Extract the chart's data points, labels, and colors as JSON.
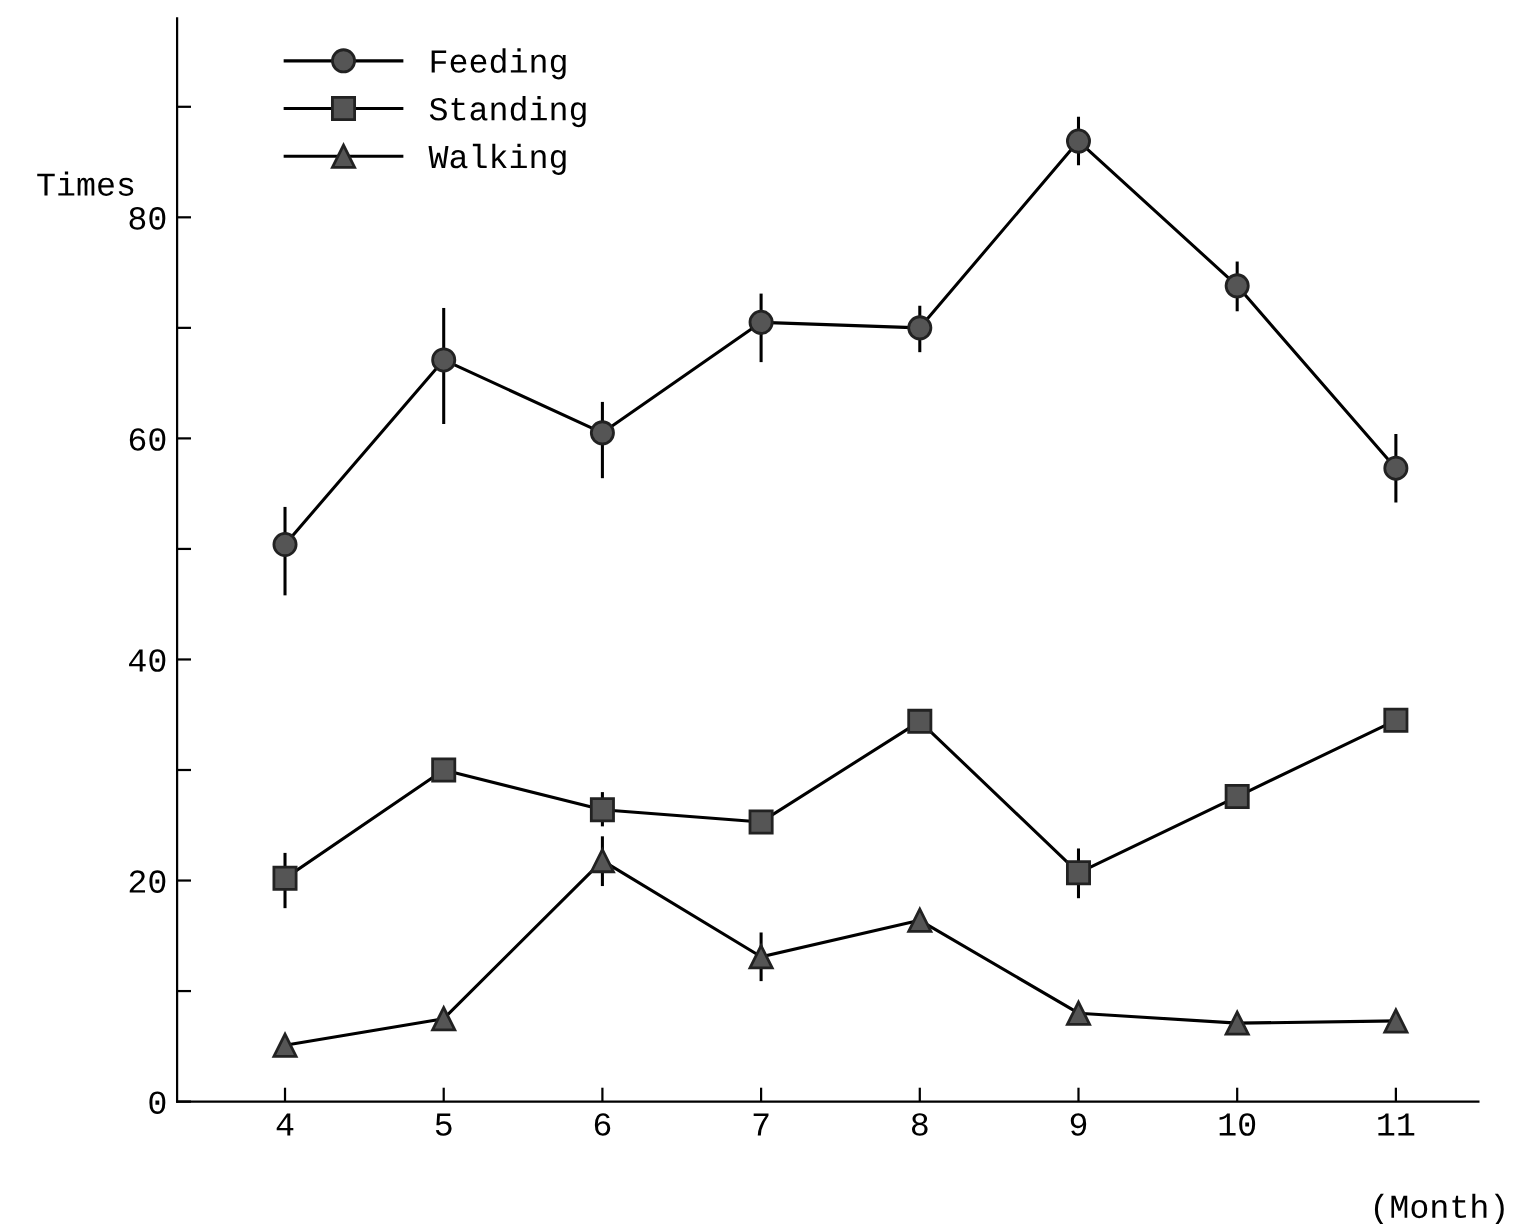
{
  "chart_data": {
    "type": "line",
    "ylabel": "Times",
    "xlabel": "(Month)",
    "x": [
      4,
      5,
      6,
      7,
      8,
      9,
      10,
      11
    ],
    "xlim": [
      3.32,
      11.52
    ],
    "xticks": [
      4,
      5,
      6,
      7,
      8,
      9,
      10,
      11
    ],
    "ylim": [
      0,
      98
    ],
    "yticks": [
      0,
      {
        "value": 10,
        "label": null
      },
      20,
      {
        "value": 30,
        "label": null
      },
      40,
      {
        "value": 50,
        "label": null
      },
      60,
      {
        "value": 70,
        "label": null
      },
      80,
      {
        "value": 90,
        "label": null
      }
    ],
    "grid": false,
    "legend": "top left",
    "line_style": "solid",
    "series": [
      {
        "name": "Feeding",
        "color": "#555555",
        "marker": "circle",
        "values": [
          50.4,
          67.1,
          60.5,
          70.5,
          70.0,
          86.9,
          73.8,
          57.3
        ],
        "errors": [
          [
            45.8,
            53.8
          ],
          [
            61.3,
            71.8
          ],
          [
            56.4,
            63.3
          ],
          [
            66.9,
            73.1
          ],
          [
            67.8,
            72.0
          ],
          [
            84.7,
            89.1
          ],
          [
            71.5,
            76.0
          ],
          [
            54.2,
            60.4
          ]
        ]
      },
      {
        "name": "Standing",
        "color": "#555555",
        "marker": "square",
        "values": [
          20.2,
          30.0,
          26.4,
          25.3,
          34.4,
          20.7,
          27.6,
          34.5
        ],
        "errors": [
          [
            17.5,
            22.5
          ],
          null,
          [
            24.9,
            28.0
          ],
          null,
          null,
          [
            18.4,
            22.9
          ],
          null,
          null
        ]
      },
      {
        "name": "Walking",
        "color": "#555555",
        "marker": "triangle",
        "values": [
          5.1,
          7.5,
          21.8,
          13.1,
          16.4,
          8.0,
          7.1,
          7.3
        ],
        "errors": [
          null,
          null,
          [
            19.5,
            24.0
          ],
          [
            10.9,
            15.3
          ],
          null,
          null,
          null,
          null
        ]
      }
    ]
  }
}
